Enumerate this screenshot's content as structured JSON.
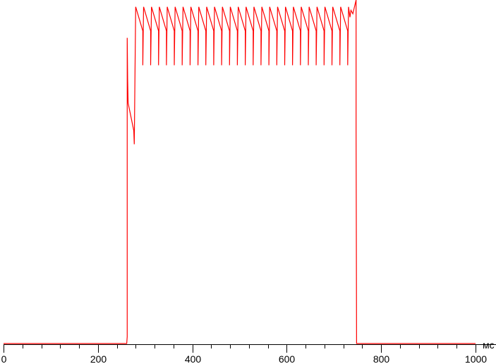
{
  "chart_data": {
    "type": "line",
    "title": "",
    "xlabel": "мс",
    "ylabel": "",
    "xlim": [
      0,
      1000
    ],
    "ylim": [
      0,
      100
    ],
    "x_major_ticks": [
      0,
      200,
      400,
      600,
      800,
      1000
    ],
    "x_tick_labels": [
      "0",
      "200",
      "400",
      "600",
      "800",
      "1000"
    ],
    "x_minor_tick_step": 40,
    "grid": false,
    "y_axis_shown": false,
    "colors": {
      "series": "#ff0000",
      "axis": "#000000"
    },
    "series": [
      {
        "points": [
          [
            0,
            0
          ],
          [
            261,
            0
          ],
          [
            262,
            2
          ],
          [
            262,
            89
          ],
          [
            263,
            77
          ],
          [
            264,
            70
          ],
          [
            276,
            62
          ],
          [
            277,
            58
          ],
          [
            280,
            98
          ],
          [
            295,
            91
          ],
          [
            295,
            81
          ],
          [
            296.7,
            98
          ],
          [
            311.7,
            91
          ],
          [
            311.7,
            81
          ],
          [
            313.4,
            98
          ],
          [
            328.4,
            91
          ],
          [
            328.4,
            81
          ],
          [
            330.1,
            98
          ],
          [
            345.1,
            91
          ],
          [
            345.1,
            81
          ],
          [
            346.8,
            98
          ],
          [
            361.8,
            91
          ],
          [
            361.8,
            81
          ],
          [
            363.5,
            98
          ],
          [
            378.5,
            91
          ],
          [
            378.5,
            81
          ],
          [
            380.2,
            98
          ],
          [
            395.2,
            91
          ],
          [
            395.2,
            81
          ],
          [
            396.9,
            98
          ],
          [
            411.9,
            91
          ],
          [
            411.9,
            81
          ],
          [
            413.6,
            98
          ],
          [
            428.6,
            91
          ],
          [
            428.6,
            81
          ],
          [
            430.3,
            98
          ],
          [
            445.3,
            91
          ],
          [
            445.3,
            81
          ],
          [
            447,
            98
          ],
          [
            462,
            91
          ],
          [
            462,
            81
          ],
          [
            463.7,
            98
          ],
          [
            478.7,
            91
          ],
          [
            478.7,
            81
          ],
          [
            480.4,
            98
          ],
          [
            495.4,
            91
          ],
          [
            495.4,
            81
          ],
          [
            497.1,
            98
          ],
          [
            512.1,
            91
          ],
          [
            512.1,
            81
          ],
          [
            513.8,
            98
          ],
          [
            528.8,
            91
          ],
          [
            528.8,
            81
          ],
          [
            530.5,
            98
          ],
          [
            545.5,
            91
          ],
          [
            545.5,
            81
          ],
          [
            547.2,
            98
          ],
          [
            562.2,
            91
          ],
          [
            562.2,
            81
          ],
          [
            563.9,
            98
          ],
          [
            578.9,
            91
          ],
          [
            578.9,
            81
          ],
          [
            580.6,
            98
          ],
          [
            595.6,
            91
          ],
          [
            595.6,
            81
          ],
          [
            597.3,
            98
          ],
          [
            612.3,
            91
          ],
          [
            612.3,
            81
          ],
          [
            614,
            98
          ],
          [
            629,
            91
          ],
          [
            629,
            81
          ],
          [
            630.7,
            98
          ],
          [
            645.7,
            91
          ],
          [
            645.7,
            81
          ],
          [
            647.4,
            98
          ],
          [
            662.4,
            91
          ],
          [
            662.4,
            81
          ],
          [
            664.1,
            98
          ],
          [
            679.1,
            91
          ],
          [
            679.1,
            81
          ],
          [
            680.8,
            98
          ],
          [
            695.8,
            91
          ],
          [
            695.8,
            81
          ],
          [
            697.5,
            98
          ],
          [
            712.5,
            91
          ],
          [
            712.5,
            81
          ],
          [
            714.2,
            98
          ],
          [
            729.2,
            91
          ],
          [
            729.2,
            81
          ],
          [
            730.9,
            98
          ],
          [
            734,
            95
          ],
          [
            736,
            97
          ],
          [
            740,
            96
          ],
          [
            747,
            100
          ],
          [
            747,
            62
          ],
          [
            748,
            0
          ],
          [
            1000,
            0
          ]
        ]
      }
    ]
  }
}
